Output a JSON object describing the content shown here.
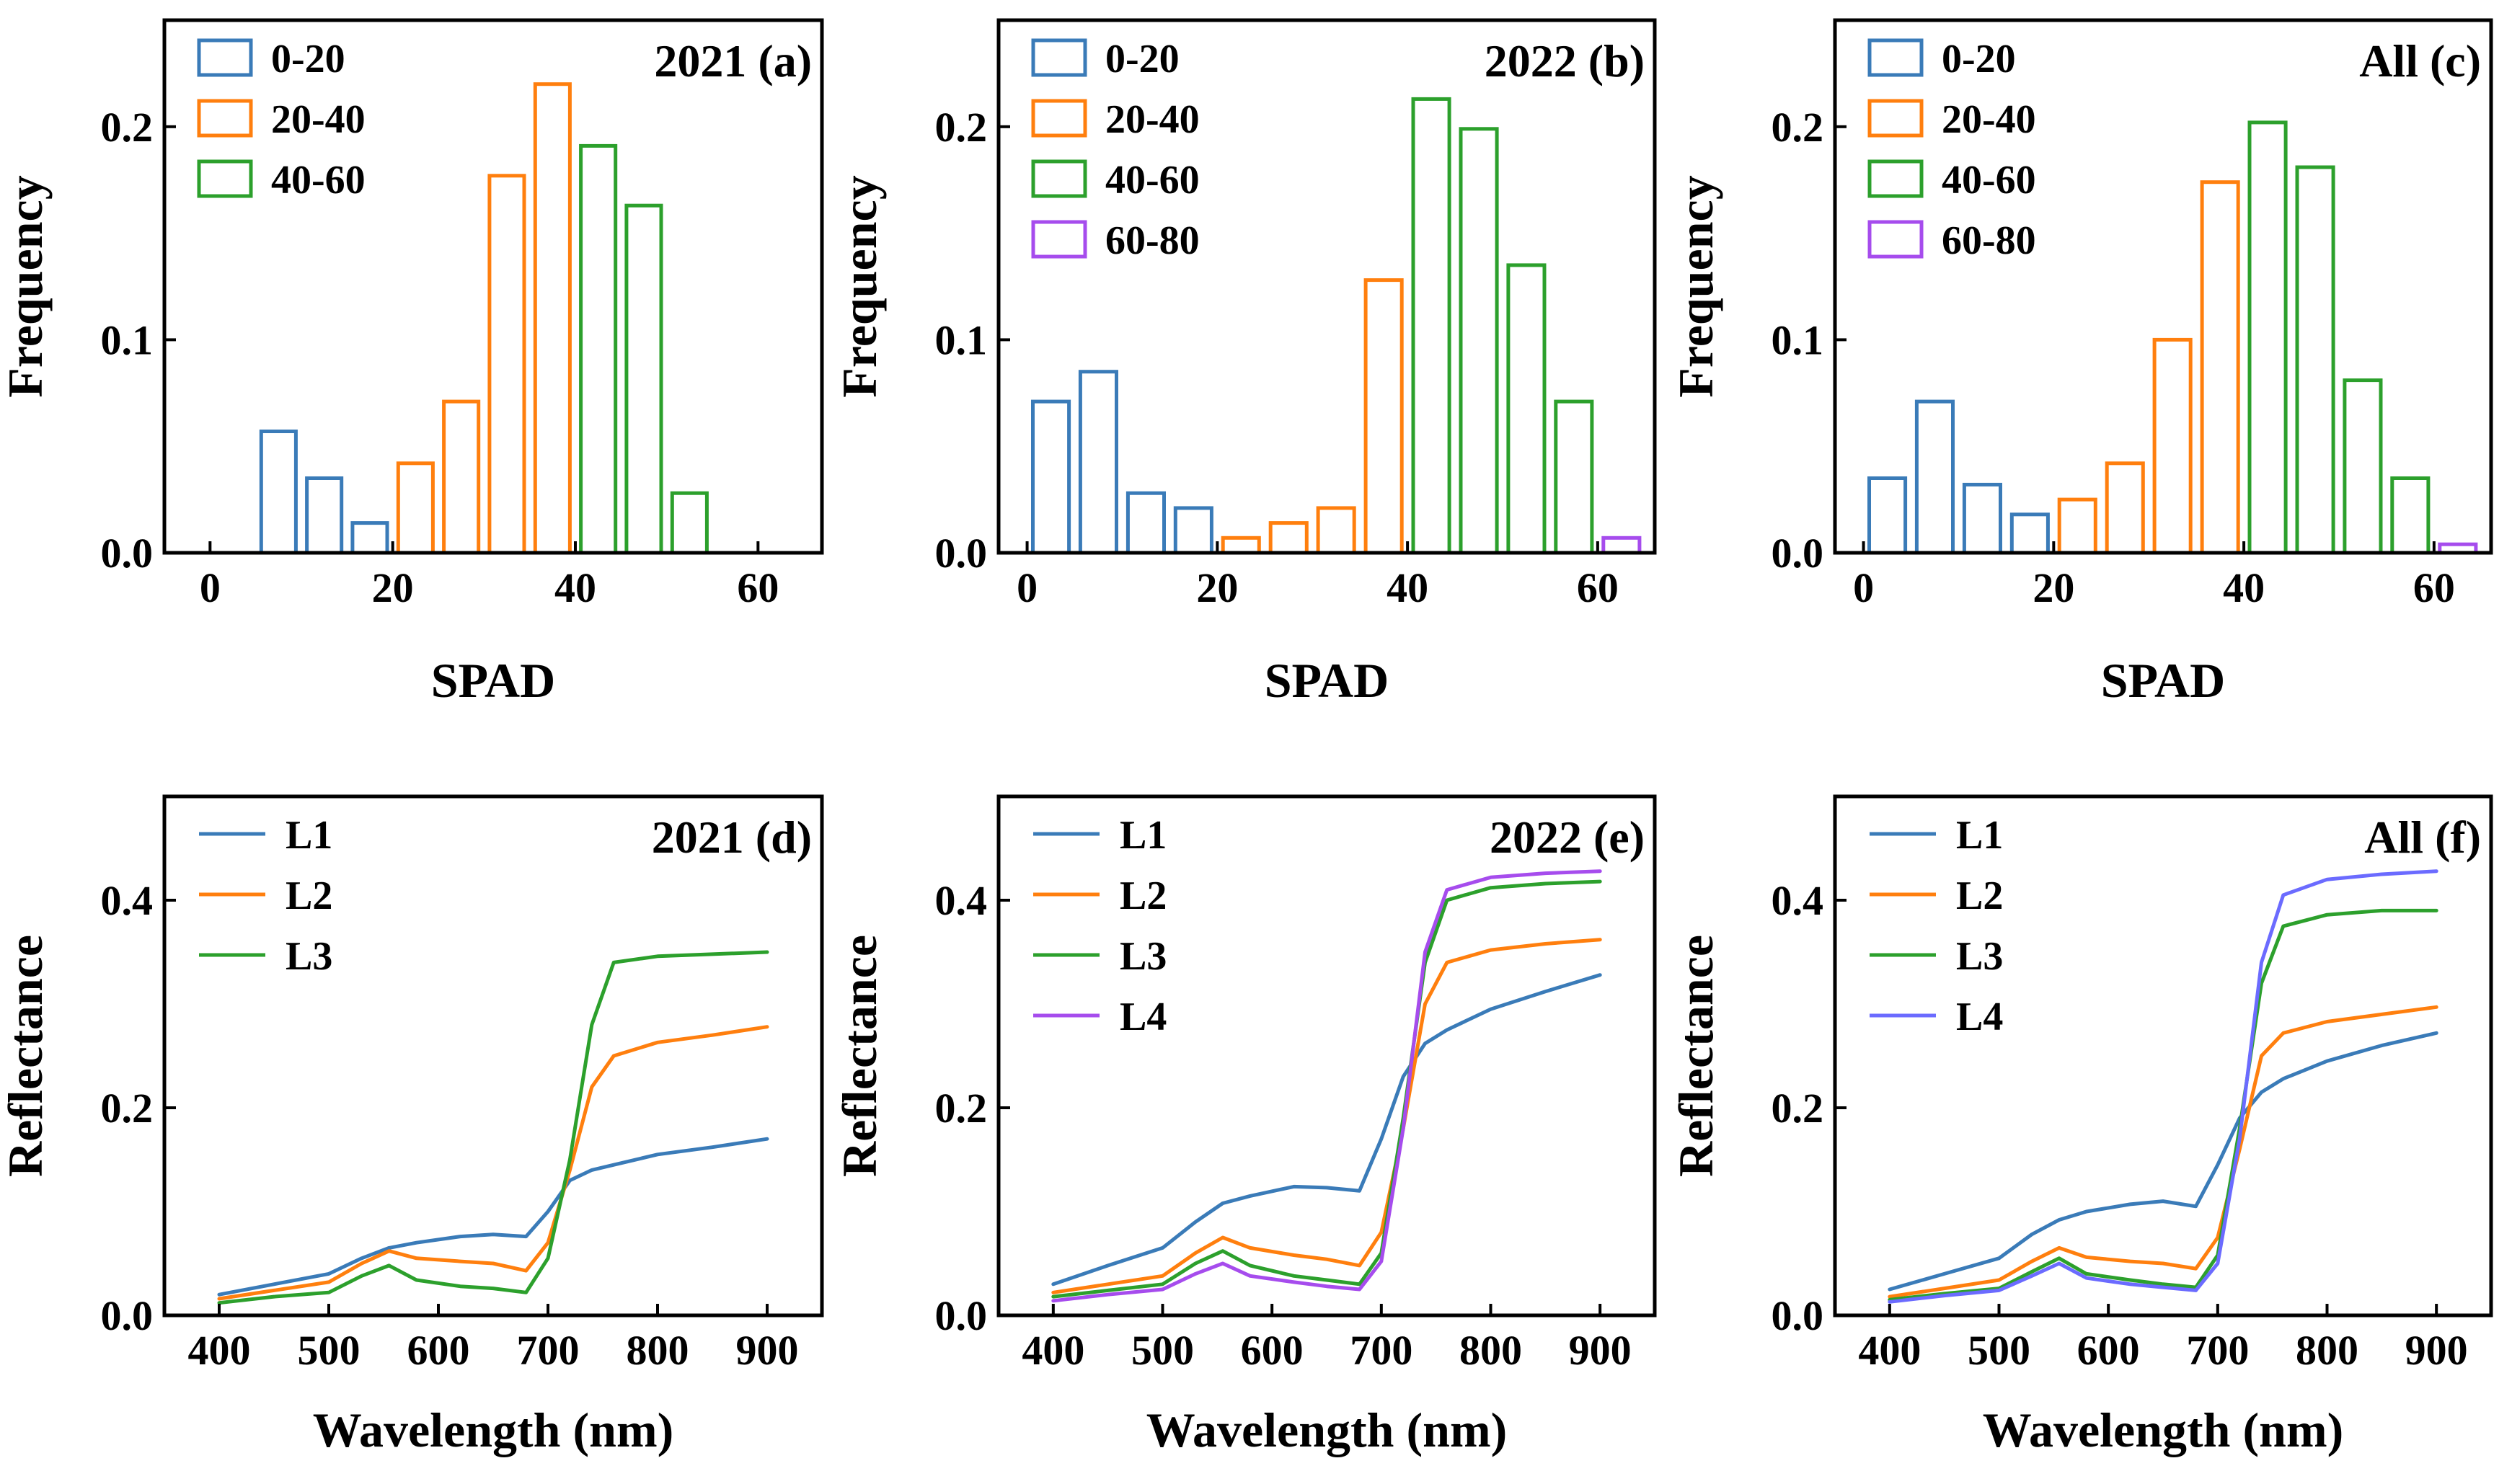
{
  "chart_data": [
    {
      "id": "a",
      "type": "bar",
      "title": "2021 (a)",
      "xlabel": "SPAD",
      "ylabel": "Frequency",
      "xlim": [
        -5,
        67
      ],
      "ylim": [
        0,
        0.25
      ],
      "xticks": [
        0,
        20,
        40,
        60
      ],
      "xtick_labels": [
        "0",
        "20",
        "40",
        "60"
      ],
      "yticks": [
        0,
        0.1,
        0.2
      ],
      "ytick_labels": [
        "0.0",
        "0.1",
        "0.2"
      ],
      "bin_width": 3.8,
      "legend": [
        {
          "label": "0-20",
          "color": "#3a7bb8"
        },
        {
          "label": "20-40",
          "color": "#ff7f0e"
        },
        {
          "label": "40-60",
          "color": "#2ca02c"
        }
      ],
      "bins": [
        {
          "x": 7.5,
          "value": 0.057,
          "group": 0
        },
        {
          "x": 12.5,
          "value": 0.035,
          "group": 0
        },
        {
          "x": 17.5,
          "value": 0.014,
          "group": 0
        },
        {
          "x": 22.5,
          "value": 0.042,
          "group": 1
        },
        {
          "x": 27.5,
          "value": 0.071,
          "group": 1
        },
        {
          "x": 32.5,
          "value": 0.177,
          "group": 1
        },
        {
          "x": 37.5,
          "value": 0.22,
          "group": 1
        },
        {
          "x": 42.5,
          "value": 0.191,
          "group": 2
        },
        {
          "x": 47.5,
          "value": 0.163,
          "group": 2
        },
        {
          "x": 52.5,
          "value": 0.028,
          "group": 2
        }
      ]
    },
    {
      "id": "b",
      "type": "bar",
      "title": "2022 (b)",
      "xlabel": "SPAD",
      "ylabel": "Frequency",
      "xlim": [
        -3,
        66
      ],
      "ylim": [
        0,
        0.25
      ],
      "xticks": [
        0,
        20,
        40,
        60
      ],
      "xtick_labels": [
        "0",
        "20",
        "40",
        "60"
      ],
      "yticks": [
        0,
        0.1,
        0.2
      ],
      "ytick_labels": [
        "0.0",
        "0.1",
        "0.2"
      ],
      "bin_width": 3.8,
      "legend": [
        {
          "label": "0-20",
          "color": "#3a7bb8"
        },
        {
          "label": "20-40",
          "color": "#ff7f0e"
        },
        {
          "label": "40-60",
          "color": "#2ca02c"
        },
        {
          "label": "60-80",
          "color": "#a64ced"
        }
      ],
      "bins": [
        {
          "x": 2.5,
          "value": 0.071,
          "group": 0
        },
        {
          "x": 7.5,
          "value": 0.085,
          "group": 0
        },
        {
          "x": 12.5,
          "value": 0.028,
          "group": 0
        },
        {
          "x": 17.5,
          "value": 0.021,
          "group": 0
        },
        {
          "x": 22.5,
          "value": 0.007,
          "group": 1
        },
        {
          "x": 27.5,
          "value": 0.014,
          "group": 1
        },
        {
          "x": 32.5,
          "value": 0.021,
          "group": 1
        },
        {
          "x": 37.5,
          "value": 0.128,
          "group": 1
        },
        {
          "x": 42.5,
          "value": 0.213,
          "group": 2
        },
        {
          "x": 47.5,
          "value": 0.199,
          "group": 2
        },
        {
          "x": 52.5,
          "value": 0.135,
          "group": 2
        },
        {
          "x": 57.5,
          "value": 0.071,
          "group": 2
        },
        {
          "x": 62.5,
          "value": 0.007,
          "group": 3
        }
      ]
    },
    {
      "id": "c",
      "type": "bar",
      "title": "All (c)",
      "xlabel": "SPAD",
      "ylabel": "Frequency",
      "xlim": [
        -3,
        66
      ],
      "ylim": [
        0,
        0.25
      ],
      "xticks": [
        0,
        20,
        40,
        60
      ],
      "xtick_labels": [
        "0",
        "20",
        "40",
        "60"
      ],
      "yticks": [
        0,
        0.1,
        0.2
      ],
      "ytick_labels": [
        "0.0",
        "0.1",
        "0.2"
      ],
      "bin_width": 3.8,
      "legend": [
        {
          "label": "0-20",
          "color": "#3a7bb8"
        },
        {
          "label": "20-40",
          "color": "#ff7f0e"
        },
        {
          "label": "40-60",
          "color": "#2ca02c"
        },
        {
          "label": "60-80",
          "color": "#a64ced"
        }
      ],
      "bins": [
        {
          "x": 2.5,
          "value": 0.035,
          "group": 0
        },
        {
          "x": 7.5,
          "value": 0.071,
          "group": 0
        },
        {
          "x": 12.5,
          "value": 0.032,
          "group": 0
        },
        {
          "x": 17.5,
          "value": 0.018,
          "group": 0
        },
        {
          "x": 22.5,
          "value": 0.025,
          "group": 1
        },
        {
          "x": 27.5,
          "value": 0.042,
          "group": 1
        },
        {
          "x": 32.5,
          "value": 0.1,
          "group": 1
        },
        {
          "x": 37.5,
          "value": 0.174,
          "group": 1
        },
        {
          "x": 42.5,
          "value": 0.202,
          "group": 2
        },
        {
          "x": 47.5,
          "value": 0.181,
          "group": 2
        },
        {
          "x": 52.5,
          "value": 0.081,
          "group": 2
        },
        {
          "x": 57.5,
          "value": 0.035,
          "group": 2
        },
        {
          "x": 62.5,
          "value": 0.004,
          "group": 3
        }
      ]
    },
    {
      "id": "d",
      "type": "line",
      "title": "2021 (d)",
      "xlabel": "Wavelength (nm)",
      "ylabel": "Reflectance",
      "xlim": [
        350,
        950
      ],
      "ylim": [
        0,
        0.5
      ],
      "xticks": [
        400,
        500,
        600,
        700,
        800,
        900
      ],
      "xtick_labels": [
        "400",
        "500",
        "600",
        "700",
        "800",
        "900"
      ],
      "yticks": [
        0,
        0.2,
        0.4
      ],
      "ytick_labels": [
        "0.0",
        "0.2",
        "0.4"
      ],
      "x": [
        400,
        450,
        500,
        530,
        555,
        580,
        620,
        650,
        680,
        700,
        720,
        740,
        760,
        800,
        850,
        900
      ],
      "series": [
        {
          "name": "L1",
          "color": "#3a7bb8",
          "values": [
            0.02,
            0.03,
            0.04,
            0.055,
            0.065,
            0.07,
            0.076,
            0.078,
            0.076,
            0.1,
            0.13,
            0.14,
            0.145,
            0.155,
            0.162,
            0.17
          ]
        },
        {
          "name": "L2",
          "color": "#ff7f0e",
          "values": [
            0.016,
            0.024,
            0.032,
            0.05,
            0.062,
            0.055,
            0.052,
            0.05,
            0.043,
            0.07,
            0.14,
            0.22,
            0.25,
            0.263,
            0.27,
            0.278
          ]
        },
        {
          "name": "L3",
          "color": "#2ca02c",
          "values": [
            0.012,
            0.018,
            0.022,
            0.038,
            0.048,
            0.034,
            0.028,
            0.026,
            0.022,
            0.055,
            0.15,
            0.28,
            0.34,
            0.346,
            0.348,
            0.35
          ]
        }
      ]
    },
    {
      "id": "e",
      "type": "line",
      "title": "2022 (e)",
      "xlabel": "Wavelength (nm)",
      "ylabel": "Reflectance",
      "xlim": [
        350,
        950
      ],
      "ylim": [
        0,
        0.5
      ],
      "xticks": [
        400,
        500,
        600,
        700,
        800,
        900
      ],
      "xtick_labels": [
        "400",
        "500",
        "600",
        "700",
        "800",
        "900"
      ],
      "yticks": [
        0,
        0.2,
        0.4
      ],
      "ytick_labels": [
        "0.0",
        "0.2",
        "0.4"
      ],
      "x": [
        400,
        450,
        500,
        530,
        555,
        580,
        620,
        650,
        680,
        700,
        720,
        740,
        760,
        800,
        850,
        900
      ],
      "series": [
        {
          "name": "L1",
          "color": "#3a7bb8",
          "values": [
            0.03,
            0.048,
            0.065,
            0.09,
            0.108,
            0.115,
            0.124,
            0.123,
            0.12,
            0.17,
            0.23,
            0.262,
            0.275,
            0.295,
            0.312,
            0.328
          ]
        },
        {
          "name": "L2",
          "color": "#ff7f0e",
          "values": [
            0.022,
            0.03,
            0.038,
            0.06,
            0.075,
            0.065,
            0.058,
            0.054,
            0.048,
            0.08,
            0.18,
            0.3,
            0.34,
            0.352,
            0.358,
            0.362
          ]
        },
        {
          "name": "L3",
          "color": "#2ca02c",
          "values": [
            0.018,
            0.024,
            0.03,
            0.05,
            0.062,
            0.048,
            0.038,
            0.034,
            0.03,
            0.06,
            0.19,
            0.34,
            0.4,
            0.412,
            0.416,
            0.418
          ]
        },
        {
          "name": "L4",
          "color": "#a64ced",
          "values": [
            0.014,
            0.02,
            0.025,
            0.04,
            0.05,
            0.038,
            0.032,
            0.028,
            0.025,
            0.052,
            0.18,
            0.35,
            0.41,
            0.422,
            0.426,
            0.428
          ]
        }
      ]
    },
    {
      "id": "f",
      "type": "line",
      "title": "All (f)",
      "xlabel": "Wavelength (nm)",
      "ylabel": "Reflectance",
      "xlim": [
        350,
        950
      ],
      "ylim": [
        0,
        0.5
      ],
      "xticks": [
        400,
        500,
        600,
        700,
        800,
        900
      ],
      "xtick_labels": [
        "400",
        "500",
        "600",
        "700",
        "800",
        "900"
      ],
      "yticks": [
        0,
        0.2,
        0.4
      ],
      "ytick_labels": [
        "0.0",
        "0.2",
        "0.4"
      ],
      "x": [
        400,
        450,
        500,
        530,
        555,
        580,
        620,
        650,
        680,
        700,
        720,
        740,
        760,
        800,
        850,
        900
      ],
      "series": [
        {
          "name": "L1",
          "color": "#3a7bb8",
          "values": [
            0.025,
            0.04,
            0.055,
            0.078,
            0.092,
            0.1,
            0.107,
            0.11,
            0.105,
            0.145,
            0.19,
            0.215,
            0.228,
            0.245,
            0.26,
            0.272
          ]
        },
        {
          "name": "L2",
          "color": "#ff7f0e",
          "values": [
            0.018,
            0.026,
            0.034,
            0.052,
            0.065,
            0.056,
            0.052,
            0.05,
            0.045,
            0.075,
            0.16,
            0.25,
            0.272,
            0.283,
            0.29,
            0.297
          ]
        },
        {
          "name": "L3",
          "color": "#2ca02c",
          "values": [
            0.015,
            0.021,
            0.026,
            0.042,
            0.055,
            0.04,
            0.034,
            0.03,
            0.027,
            0.058,
            0.18,
            0.32,
            0.375,
            0.386,
            0.39,
            0.39
          ]
        },
        {
          "name": "L4",
          "color": "#6b6bff",
          "values": [
            0.013,
            0.019,
            0.024,
            0.038,
            0.05,
            0.036,
            0.03,
            0.027,
            0.024,
            0.05,
            0.17,
            0.34,
            0.405,
            0.42,
            0.425,
            0.428
          ]
        }
      ]
    }
  ]
}
